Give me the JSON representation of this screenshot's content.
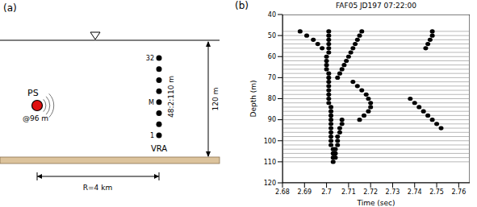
{
  "panel_a": {
    "label": "(a)",
    "source": {
      "label": "PS",
      "depth_label": "@96 m"
    },
    "array": {
      "label": "VRA",
      "element_labels": [
        "32",
        "M",
        "1"
      ],
      "span_label": "48:2:110 m"
    },
    "water_depth_label": "120 m",
    "range_label": "R=4 km"
  },
  "chart_data": {
    "panel_label": "(b)",
    "type": "scatter",
    "title": "FAF05 JD197 07:22:00",
    "x_label": "Time (sec)",
    "y_label": "Depth (m)",
    "xlim": [
      2.68,
      2.765
    ],
    "xticks": [
      2.68,
      2.69,
      2.7,
      2.71,
      2.72,
      2.73,
      2.74,
      2.75,
      2.76
    ],
    "ylim": [
      40,
      120
    ],
    "yticks": [
      40,
      50,
      60,
      70,
      80,
      90,
      100,
      110,
      120
    ],
    "grid": false,
    "color": "#000000",
    "trace_depths": [
      48,
      50,
      52,
      54,
      56,
      58,
      60,
      62,
      64,
      66,
      68,
      70,
      72,
      74,
      76,
      78,
      80,
      82,
      84,
      86,
      88,
      90,
      92,
      94,
      96,
      98,
      100,
      102,
      104,
      106,
      108,
      110
    ],
    "series": [
      {
        "x": [
          2.701,
          2.701,
          2.701,
          2.701,
          2.701,
          2.701,
          2.7,
          2.7,
          2.7,
          2.7,
          2.701,
          2.701,
          2.701,
          2.701,
          2.701,
          2.701,
          2.701,
          2.701,
          2.702,
          2.702,
          2.702,
          2.702,
          2.702,
          2.702,
          2.702,
          2.702,
          2.702,
          2.702,
          2.703,
          2.703,
          2.703,
          2.703
        ],
        "y": [
          48,
          50,
          52,
          54,
          56,
          58,
          60,
          62,
          64,
          66,
          68,
          70,
          72,
          74,
          76,
          78,
          80,
          82,
          84,
          86,
          88,
          90,
          92,
          94,
          96,
          98,
          100,
          102,
          104,
          106,
          108,
          110
        ]
      },
      {
        "x": [
          2.688,
          2.691,
          2.694,
          2.696,
          2.698
        ],
        "y": [
          48,
          50,
          52,
          54,
          56
        ]
      },
      {
        "x": [
          2.716,
          2.715,
          2.714,
          2.713,
          2.712,
          2.711,
          2.71,
          2.709,
          2.708,
          2.707,
          2.706,
          2.705
        ],
        "y": [
          48,
          50,
          52,
          54,
          56,
          58,
          60,
          62,
          64,
          66,
          68,
          70
        ]
      },
      {
        "x": [
          2.712,
          2.714,
          2.716,
          2.718,
          2.719,
          2.72,
          2.72,
          2.719,
          2.717,
          2.715
        ],
        "y": [
          72,
          74,
          76,
          78,
          80,
          82,
          84,
          86,
          88,
          90
        ]
      },
      {
        "x": [
          2.707,
          2.707,
          2.706,
          2.706,
          2.705,
          2.705,
          2.705,
          2.704,
          2.704,
          2.704
        ],
        "y": [
          90,
          92,
          94,
          96,
          98,
          100,
          102,
          104,
          106,
          108
        ]
      },
      {
        "x": [
          2.748,
          2.748,
          2.747,
          2.746,
          2.745
        ],
        "y": [
          48,
          50,
          52,
          54,
          56
        ]
      },
      {
        "x": [
          2.738,
          2.74,
          2.742,
          2.744,
          2.746,
          2.748,
          2.75,
          2.752
        ],
        "y": [
          80,
          82,
          84,
          86,
          88,
          90,
          92,
          94
        ]
      }
    ]
  }
}
